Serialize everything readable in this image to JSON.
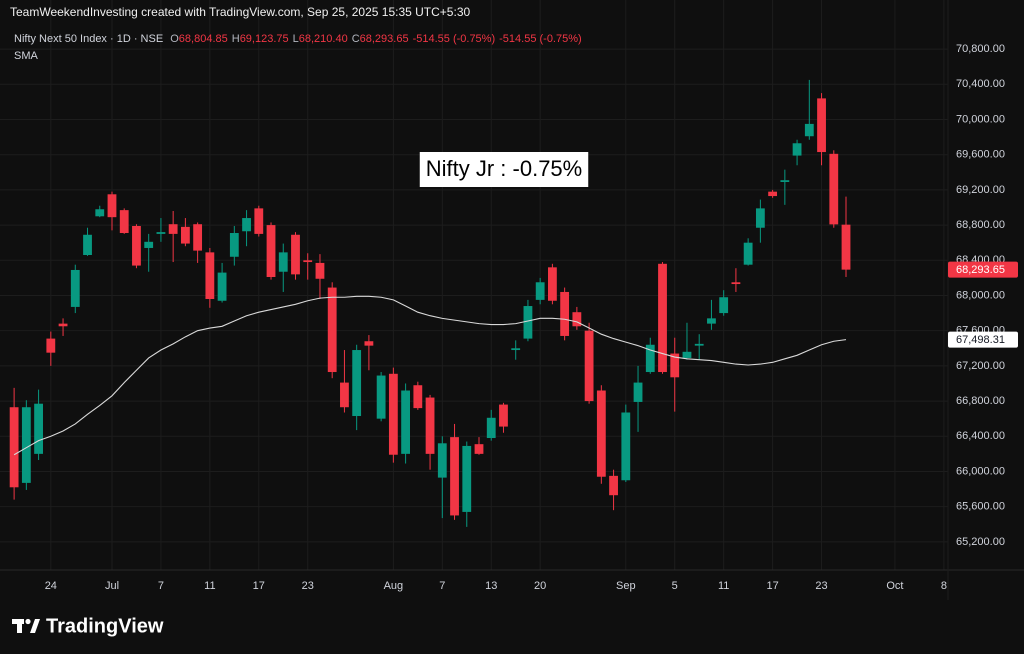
{
  "watermark": "TeamWeekendInvesting created with TradingView.com, Sep 25, 2025 15:35 UTC+5:30",
  "brand": "TradingView",
  "chart_data": {
    "type": "candlestick",
    "symbol": "Nifty Next 50 Index · 1D · NSE",
    "ohlc": [
      [
        "O",
        "68,804.85"
      ],
      [
        "H",
        "69,123.75"
      ],
      [
        "L",
        "68,210.40"
      ],
      [
        "C",
        "68,293.65"
      ]
    ],
    "change": [
      "-514.55 (-0.75%)",
      "-514.55 (-0.75%)"
    ],
    "annotation": "Nifty Jr : -0.75%",
    "last_label": "68,293.65",
    "colors": {
      "up": "#089981",
      "down": "#f23645"
    },
    "categories": [
      null,
      null,
      null,
      "24",
      null,
      null,
      null,
      null,
      "Jul",
      null,
      null,
      null,
      "7",
      null,
      null,
      null,
      "11",
      null,
      null,
      null,
      "17",
      null,
      null,
      null,
      "23",
      null,
      null,
      null,
      null,
      null,
      null,
      "Aug",
      null,
      null,
      null,
      "7",
      null,
      null,
      null,
      "13",
      null,
      null,
      null,
      "20",
      null,
      null,
      null,
      null,
      null,
      null,
      "Sep",
      null,
      null,
      null,
      "5",
      null,
      null,
      null,
      "11",
      null,
      null,
      null,
      "17",
      null,
      null,
      null,
      "23",
      null,
      null,
      null,
      null,
      null,
      "Oct",
      null,
      null,
      null,
      "8"
    ],
    "open": [
      66730,
      65870,
      66200,
      67510,
      67680,
      67870,
      68460,
      68900,
      69150,
      68970,
      68790,
      68540,
      68700,
      68810,
      68780,
      68810,
      68490,
      67940,
      68440,
      68730,
      68990,
      68800,
      68270,
      68690,
      68400,
      68370,
      68090,
      67010,
      66630,
      67480,
      66600,
      67110,
      66200,
      66980,
      66840,
      65930,
      66390,
      65540,
      66310,
      66380,
      66760,
      67380,
      67510,
      67950,
      68320,
      68040,
      67810,
      67600,
      66920,
      65950,
      65900,
      66790,
      67130,
      68360,
      67340,
      67290,
      67430,
      67680,
      67800,
      68150,
      68350,
      68770,
      69180,
      69290,
      69590,
      69810,
      70240,
      69610,
      68804.85,
      null,
      null,
      null,
      null,
      null,
      null,
      null,
      null
    ],
    "high": [
      66950,
      66810,
      66930,
      67590,
      67740,
      68350,
      68770,
      69020,
      69180,
      68990,
      68810,
      68700,
      68880,
      68960,
      68880,
      68830,
      68540,
      68370,
      68790,
      68970,
      69020,
      68830,
      68590,
      68720,
      68480,
      68470,
      68150,
      67380,
      67440,
      67550,
      67130,
      67180,
      67000,
      67020,
      66870,
      66400,
      66540,
      66340,
      66390,
      66700,
      66780,
      67490,
      67950,
      68200,
      68360,
      68090,
      67870,
      67690,
      66980,
      66020,
      66760,
      67200,
      67520,
      68380,
      67520,
      67690,
      67560,
      67950,
      68060,
      68310,
      68650,
      69090,
      69200,
      69430,
      69770,
      70450,
      70300,
      69650,
      69123.75,
      null,
      null,
      null,
      null,
      null,
      null,
      null,
      null
    ],
    "low": [
      65680,
      65790,
      66130,
      67200,
      67540,
      67800,
      68450,
      68890,
      68740,
      68700,
      68310,
      68270,
      68610,
      68380,
      68560,
      68370,
      67860,
      67920,
      68340,
      68560,
      68670,
      68180,
      68040,
      68180,
      68180,
      67960,
      67060,
      66670,
      66470,
      67150,
      66570,
      66100,
      66090,
      66700,
      66020,
      65470,
      65450,
      65370,
      66190,
      66350,
      66440,
      67270,
      67480,
      67900,
      67900,
      67490,
      67610,
      66770,
      65860,
      65560,
      65880,
      66450,
      67110,
      67110,
      66680,
      67270,
      67270,
      67610,
      67770,
      68040,
      68340,
      68600,
      69110,
      69030,
      69480,
      69770,
      69480,
      68770,
      68210.4,
      null,
      null,
      null,
      null,
      null,
      null,
      null,
      null
    ],
    "close": [
      65820,
      66730,
      66770,
      67350,
      67650,
      68290,
      68690,
      68980,
      68890,
      68710,
      68340,
      68610,
      68720,
      68700,
      68590,
      68510,
      67960,
      68260,
      68710,
      68880,
      68700,
      68210,
      68490,
      68240,
      68380,
      68190,
      67130,
      66730,
      67380,
      67430,
      67090,
      66190,
      66920,
      66720,
      66200,
      66320,
      65500,
      66290,
      66200,
      66610,
      66510,
      67400,
      67880,
      68150,
      67940,
      67540,
      67650,
      66800,
      65940,
      65730,
      66670,
      67010,
      67440,
      67130,
      67070,
      67360,
      67450,
      67740,
      67980,
      68130,
      68600,
      68990,
      69130,
      69310,
      69730,
      69950,
      69630,
      68808.2,
      68293.65,
      null,
      null,
      null,
      null,
      null,
      null,
      null,
      null
    ],
    "sma": {
      "name": "SMA",
      "color": "#d9d9d9",
      "last_label": "67,498.31",
      "values": [
        66190,
        66270,
        66350,
        66400,
        66460,
        66540,
        66650,
        66750,
        66860,
        67010,
        67150,
        67290,
        67380,
        67450,
        67530,
        67600,
        67630,
        67650,
        67710,
        67770,
        67810,
        67840,
        67870,
        67900,
        67940,
        67970,
        67980,
        67980,
        67990,
        67990,
        67980,
        67950,
        67880,
        67810,
        67770,
        67740,
        67720,
        67700,
        67680,
        67670,
        67670,
        67680,
        67710,
        67740,
        67740,
        67730,
        67700,
        67630,
        67560,
        67510,
        67470,
        67430,
        67380,
        67340,
        67300,
        67280,
        67270,
        67260,
        67240,
        67220,
        67210,
        67220,
        67240,
        67280,
        67320,
        67380,
        67440,
        67480,
        67498.31,
        null,
        null,
        null,
        null,
        null,
        null,
        null,
        null
      ]
    },
    "ylim": [
      64880,
      71040
    ],
    "yticks": [
      {
        "value": 65200,
        "label": "65,200.00"
      },
      {
        "value": 65600,
        "label": "65,600.00"
      },
      {
        "value": 66000,
        "label": "66,000.00"
      },
      {
        "value": 66400,
        "label": "66,400.00"
      },
      {
        "value": 66800,
        "label": "66,800.00"
      },
      {
        "value": 67200,
        "label": "67,200.00"
      },
      {
        "value": 67600,
        "label": "67,600.00"
      },
      {
        "value": 68000,
        "label": "68,000.00"
      },
      {
        "value": 68400,
        "label": "68,400.00"
      },
      {
        "value": 68800,
        "label": "68,800.00"
      },
      {
        "value": 69200,
        "label": "69,200.00"
      },
      {
        "value": 69600,
        "label": "69,600.00"
      },
      {
        "value": 70000,
        "label": "70,000.00"
      },
      {
        "value": 70400,
        "label": "70,400.00"
      },
      {
        "value": 70800,
        "label": "70,800.00"
      }
    ],
    "grid": true
  }
}
